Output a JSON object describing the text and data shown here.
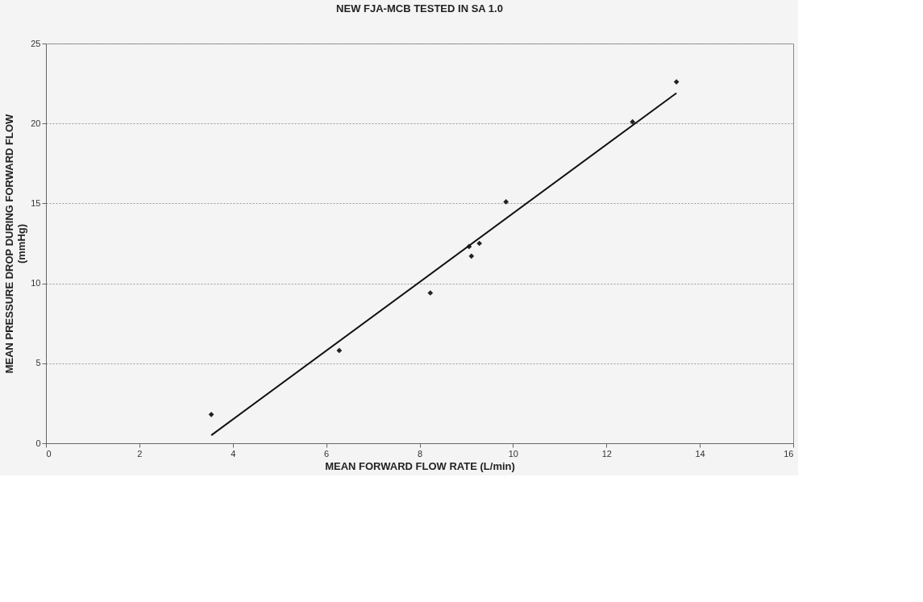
{
  "chart_data": {
    "type": "scatter",
    "title": "NEW FJA-MCB TESTED IN SA 1.0",
    "xlabel": "MEAN FORWARD FLOW RATE (L/min)",
    "ylabel": "MEAN PRESSURE DROP DURING FORWARD FLOW (mmHg)",
    "series": [
      {
        "color": "#222222",
        "marker": "diamond",
        "x": [
          3.54,
          6.28,
          8.23,
          9.06,
          9.11,
          9.28,
          9.85,
          12.56,
          13.5
        ],
        "values": [
          1.8,
          5.8,
          9.4,
          12.3,
          11.7,
          12.5,
          15.1,
          20.1,
          22.6
        ]
      },
      {
        "type": "line",
        "color": "#111111",
        "marker": "none",
        "line_style": "solid",
        "x": [
          3.54,
          13.5
        ],
        "values": [
          0.5,
          21.9
        ]
      }
    ],
    "xlim": [
      0,
      16
    ],
    "xticks": [
      0,
      2,
      4,
      6,
      8,
      10,
      12,
      14,
      16
    ],
    "ylim": [
      0,
      25
    ],
    "yticks": [
      0,
      5,
      10,
      15,
      20,
      25
    ],
    "grid": "y"
  }
}
